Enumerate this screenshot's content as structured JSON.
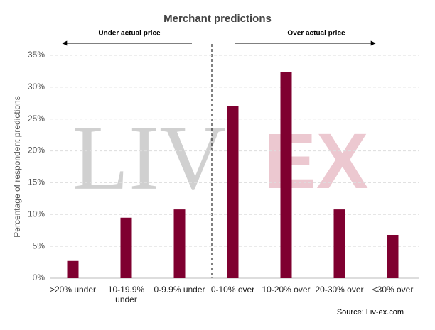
{
  "chart_data": {
    "type": "bar",
    "title": "Merchant predictions",
    "y_label": "Percentage of respondent predictions",
    "annotations": [
      "Under actual price",
      "Over actual price"
    ],
    "watermark": [
      "LIV",
      "EX"
    ],
    "source": "Source: Liv-ex.com",
    "categories": [
      ">20% under",
      "10-19.9% under",
      "0-9.9% under",
      "0-10% over",
      "10-20% over",
      "20-30% over",
      "<30% over"
    ],
    "values": [
      2.7,
      9.5,
      10.8,
      27.0,
      32.4,
      10.8,
      6.8
    ],
    "color": "#7f0030",
    "ylim": [
      0,
      35
    ],
    "yticks": [
      {
        "value": 0,
        "label": "0%"
      },
      {
        "value": 5,
        "label": "5%"
      },
      {
        "value": 10,
        "label": "10%"
      },
      {
        "value": 15,
        "label": "15%"
      },
      {
        "value": 20,
        "label": "20%"
      },
      {
        "value": 25,
        "label": "25%"
      },
      {
        "value": 30,
        "label": "30%"
      },
      {
        "value": 35,
        "label": "35%"
      }
    ],
    "grid": true
  }
}
